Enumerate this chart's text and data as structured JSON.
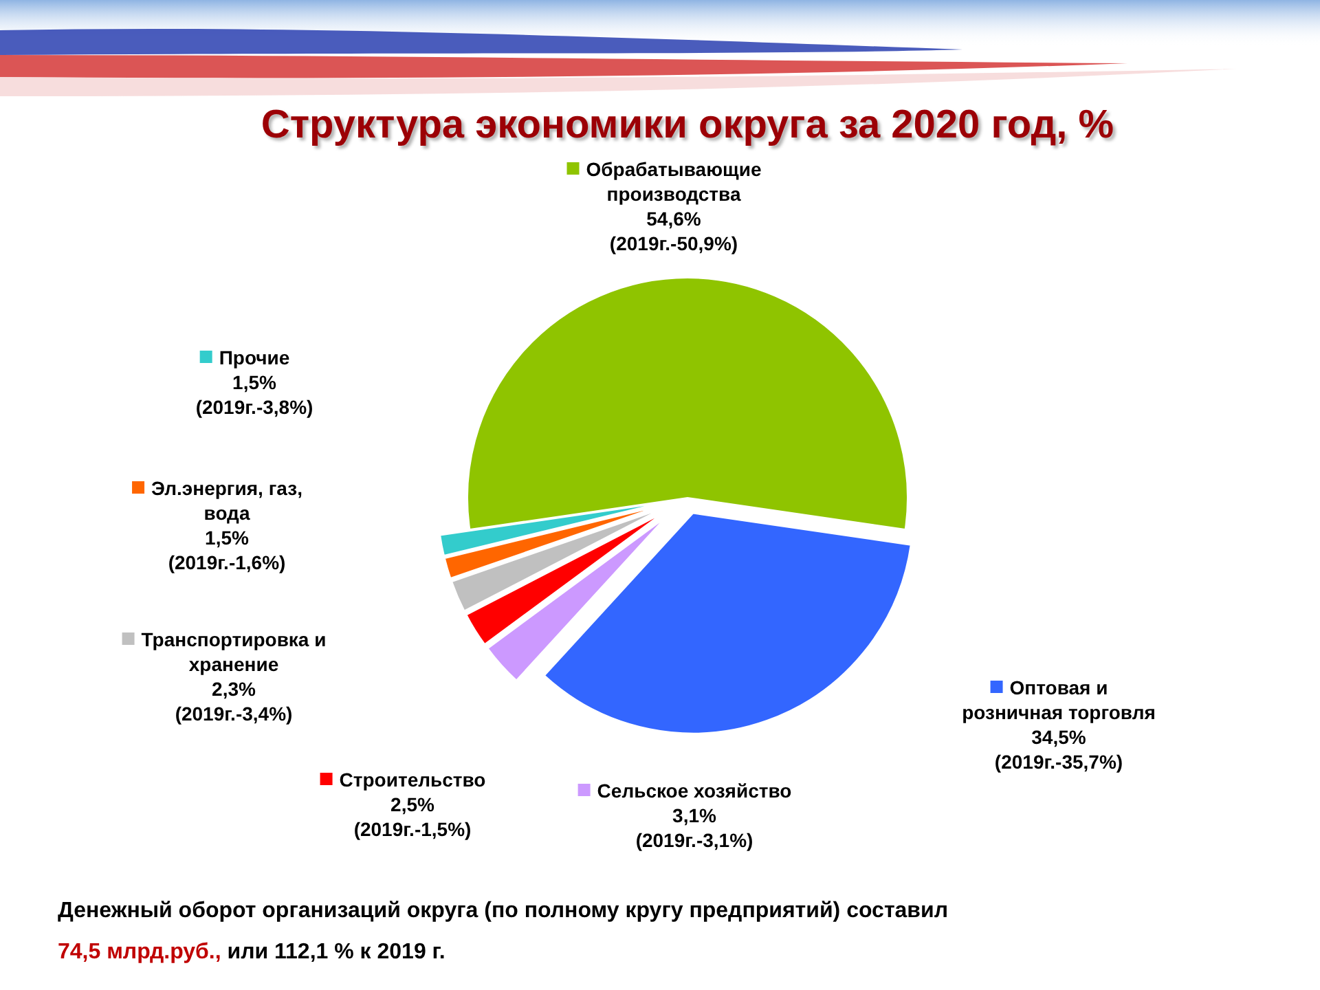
{
  "chart_data": {
    "type": "pie",
    "title": "Структура экономики округа за 2020 год, %",
    "categories": [
      "Обрабатывающие производства",
      "Оптовая и розничная торговля",
      "Сельское хозяйство",
      "Строительство",
      "Транспортировка и хранение",
      "Эл.энергия, газ, вода",
      "Прочие"
    ],
    "values": [
      54.6,
      34.5,
      3.1,
      2.5,
      2.3,
      1.5,
      1.5
    ],
    "colors": [
      "#8fc400",
      "#3366ff",
      "#cc99ff",
      "#ff0000",
      "#c0c0c0",
      "#ff6600",
      "#33cccc"
    ],
    "value_labels": [
      "54,6% (2019г.-50,9%)",
      "34,5% (2019г.-35,7%)",
      "3,1% (2019г.-3,1%)",
      "2,5% (2019г.-1,5%)",
      "2,3% (2019г.-3,4%)",
      "1,5% (2019г.-1,6%)",
      "1,5% (2019г.-3,8%)"
    ],
    "legend": "left",
    "annotations": [
      "Денежный оборот организаций округа (по полному кругу предприятий) составил",
      "74,5 млрд.руб.,",
      "или 112,1 % к 2019 г."
    ]
  }
}
